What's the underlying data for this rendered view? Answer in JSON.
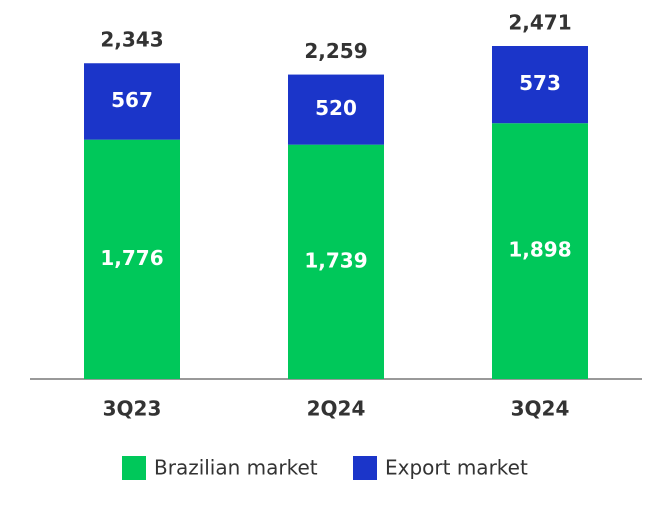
{
  "chart_data": {
    "type": "stacked_bar",
    "categories": [
      "3Q23",
      "2Q24",
      "3Q24"
    ],
    "series": [
      {
        "name": "Brazilian market",
        "color": "#00c85a",
        "values": [
          1776,
          1739,
          1898
        ],
        "value_labels": [
          "1,776",
          "1,739",
          "1,898"
        ]
      },
      {
        "name": "Export market",
        "color": "#1b35c9",
        "values": [
          567,
          520,
          573
        ],
        "value_labels": [
          "567",
          "520",
          "573"
        ]
      }
    ],
    "totals": [
      2343,
      2259,
      2471
    ],
    "total_labels": [
      "2,343",
      "2,259",
      "2,471"
    ],
    "legend": "bottom"
  }
}
